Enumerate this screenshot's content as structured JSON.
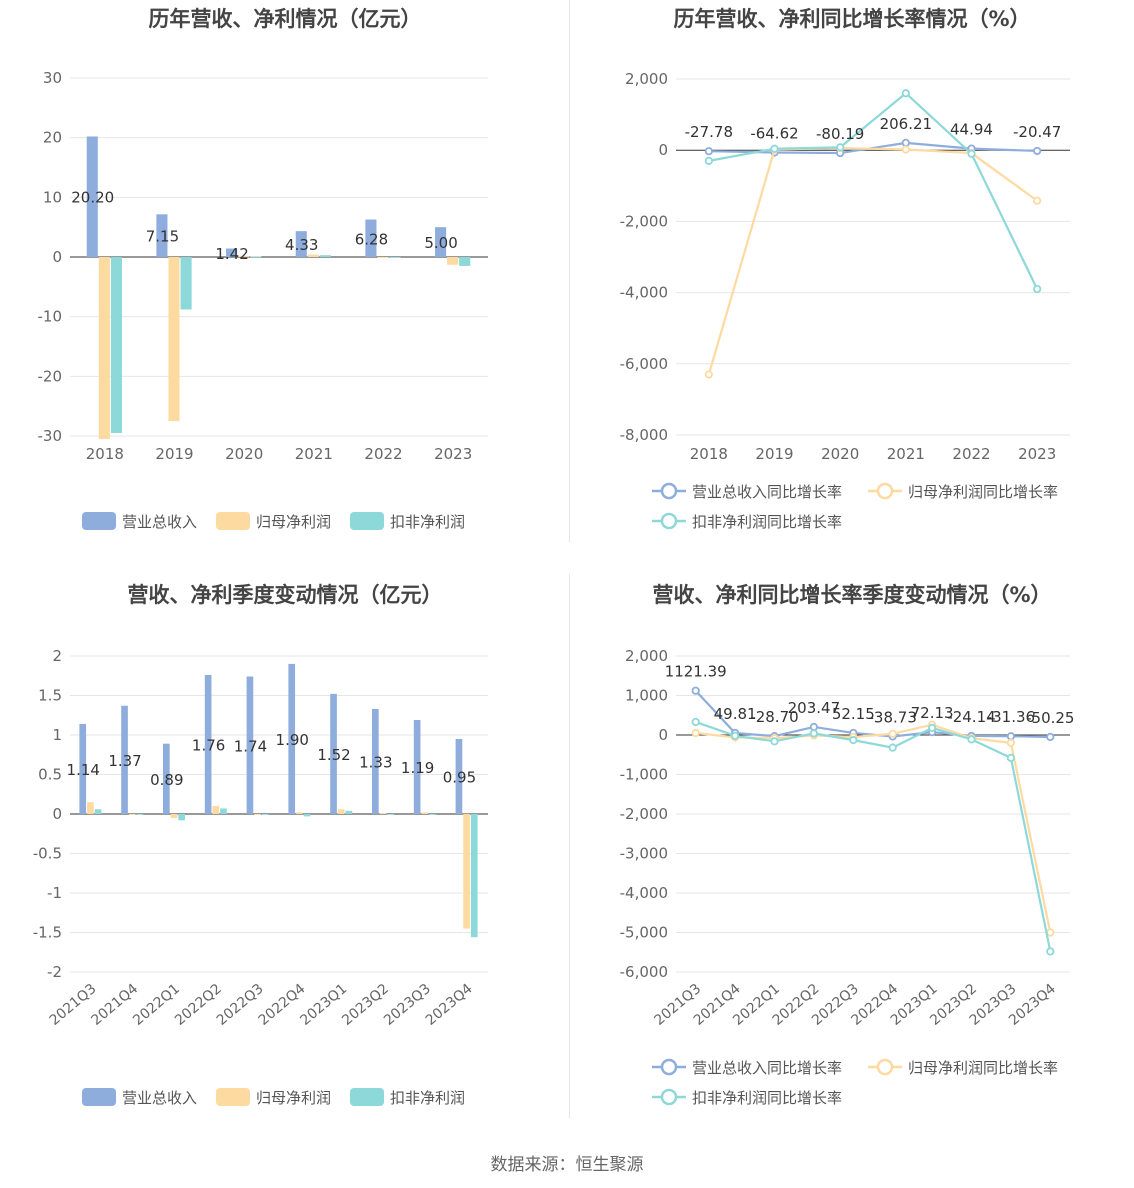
{
  "source_label": "数据来源：恒生聚源",
  "colors": {
    "revenue": "#8eaddc",
    "net_profit": "#fddaa0",
    "deducted_profit": "#8dd8d8",
    "grid": "#e6e6e6",
    "axis": "#333333",
    "tick": "#666666",
    "title": "#444444"
  },
  "chart_data": [
    {
      "type": "bar",
      "title": "历年营收、净利情况（亿元）",
      "categories": [
        "2018",
        "2019",
        "2020",
        "2021",
        "2022",
        "2023"
      ],
      "ylim": [
        -30,
        30
      ],
      "yticks": [
        30,
        20,
        10,
        0,
        -10,
        -20,
        -30
      ],
      "legend_position": "bottom-center",
      "series": [
        {
          "name": "营业总收入",
          "values": [
            20.2,
            7.15,
            1.42,
            4.33,
            6.28,
            5.0
          ],
          "labels": [
            "20.20",
            "7.15",
            "1.42",
            "4.33",
            "6.28",
            "5.00"
          ]
        },
        {
          "name": "归母净利润",
          "values": [
            -30.5,
            -27.5,
            0.2,
            0.4,
            -0.1,
            -1.3
          ]
        },
        {
          "name": "扣非净利润",
          "values": [
            -29.5,
            -8.8,
            0.1,
            0.3,
            -0.1,
            -1.5
          ]
        }
      ]
    },
    {
      "type": "line",
      "title": "历年营收、净利同比增长率情况（%）",
      "categories": [
        "2018",
        "2019",
        "2020",
        "2021",
        "2022",
        "2023"
      ],
      "ylim": [
        -8000,
        2000
      ],
      "yticks": [
        2000,
        0,
        -2000,
        -4000,
        -6000,
        -8000
      ],
      "ytick_labels": [
        "2,000",
        "0",
        "-2,000",
        "-4,000",
        "-6,000",
        "-8,000"
      ],
      "legend_position": "bottom-center",
      "series": [
        {
          "name": "营业总收入同比增长率",
          "values": [
            -27.78,
            -64.62,
            -80.19,
            206.21,
            44.94,
            -20.47
          ],
          "labels": [
            "-27.78",
            "-64.62",
            "-80.19",
            "206.21",
            "44.94",
            "-20.47"
          ]
        },
        {
          "name": "归母净利润同比增长率",
          "values": [
            -6300,
            20,
            60,
            20,
            -80,
            -1420
          ]
        },
        {
          "name": "扣非净利润同比增长率",
          "values": [
            -300,
            40,
            80,
            1600,
            -100,
            -3900
          ]
        }
      ]
    },
    {
      "type": "bar",
      "title": "营收、净利季度变动情况（亿元）",
      "categories": [
        "2021Q3",
        "2021Q4",
        "2022Q1",
        "2022Q2",
        "2022Q3",
        "2022Q4",
        "2023Q1",
        "2023Q2",
        "2023Q3",
        "2023Q4"
      ],
      "ylim": [
        -2,
        2
      ],
      "yticks": [
        2,
        1.5,
        1,
        0.5,
        0,
        -0.5,
        -1,
        -1.5,
        -2
      ],
      "legend_position": "bottom-center",
      "series": [
        {
          "name": "营业总收入",
          "values": [
            1.14,
            1.37,
            0.89,
            1.76,
            1.74,
            1.9,
            1.52,
            1.33,
            1.19,
            0.95
          ],
          "labels": [
            "1.14",
            "1.37",
            "0.89",
            "1.76",
            "1.74",
            "1.90",
            "1.52",
            "1.33",
            "1.19",
            "0.95"
          ]
        },
        {
          "name": "归母净利润",
          "values": [
            0.15,
            0.0,
            -0.05,
            0.1,
            0.0,
            0.02,
            0.06,
            0.01,
            0.02,
            -1.45
          ]
        },
        {
          "name": "扣非净利润",
          "values": [
            0.06,
            0.0,
            -0.08,
            0.07,
            0.0,
            -0.03,
            0.04,
            0.0,
            -0.01,
            -1.56
          ]
        }
      ]
    },
    {
      "type": "line",
      "title": "营收、净利同比增长率季度变动情况（%）",
      "categories": [
        "2021Q3",
        "2021Q4",
        "2022Q1",
        "2022Q2",
        "2022Q3",
        "2022Q4",
        "2023Q1",
        "2023Q2",
        "2023Q3",
        "2023Q4"
      ],
      "ylim": [
        -6000,
        2000
      ],
      "yticks": [
        2000,
        1000,
        0,
        -1000,
        -2000,
        -3000,
        -4000,
        -5000,
        -6000
      ],
      "ytick_labels": [
        "2,000",
        "1,000",
        "0",
        "-1,000",
        "-2,000",
        "-3,000",
        "-4,000",
        "-5,000",
        "-6,000"
      ],
      "legend_position": "bottom-center",
      "series": [
        {
          "name": "营业总收入同比增长率",
          "values": [
            1121.39,
            49.81,
            -28.7,
            203.47,
            52.15,
            -38.73,
            72.13,
            -24.14,
            -31.36,
            -50.25
          ],
          "labels": [
            "1121.39",
            "49.81",
            "-28.70",
            "203.47",
            "52.15",
            "-38.73",
            "72.13",
            "-24.14",
            "-31.36",
            "-50.25"
          ]
        },
        {
          "name": "归母净利润同比增长率",
          "values": [
            50,
            -60,
            -80,
            -10,
            -50,
            30,
            260,
            -80,
            -200,
            -5000
          ]
        },
        {
          "name": "扣非净利润同比增长率",
          "values": [
            330,
            -20,
            -160,
            40,
            -130,
            -320,
            180,
            -110,
            -580,
            -5480
          ]
        }
      ]
    }
  ]
}
